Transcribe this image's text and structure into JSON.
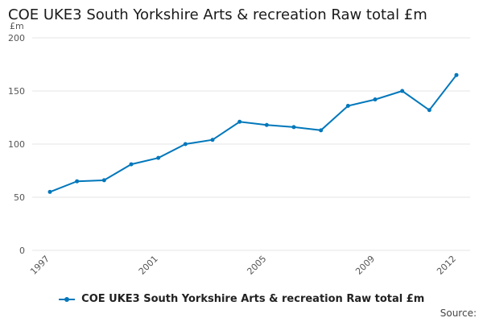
{
  "chart_data": {
    "type": "line",
    "title": "COE UKE3 South Yorkshire Arts & recreation Raw total £m",
    "ylabel": "£m",
    "xlabel": "",
    "ylim": [
      0,
      200
    ],
    "yticks": [
      0,
      50,
      100,
      150,
      200
    ],
    "xlim": [
      1997,
      2012
    ],
    "xticks": [
      1997,
      2001,
      2005,
      2009,
      2012
    ],
    "grid": true,
    "legend_position": "bottom",
    "series": [
      {
        "name": "COE UKE3 South Yorkshire Arts & recreation Raw total £m",
        "color": "#0077bb",
        "x": [
          1997,
          1998,
          1999,
          2000,
          2001,
          2002,
          2003,
          2004,
          2005,
          2006,
          2007,
          2008,
          2009,
          2010,
          2011,
          2012
        ],
        "values": [
          55,
          65,
          66,
          81,
          87,
          100,
          104,
          121,
          118,
          116,
          113,
          136,
          142,
          150,
          132,
          165
        ]
      }
    ]
  },
  "footer": {
    "source_label": "Source:"
  }
}
